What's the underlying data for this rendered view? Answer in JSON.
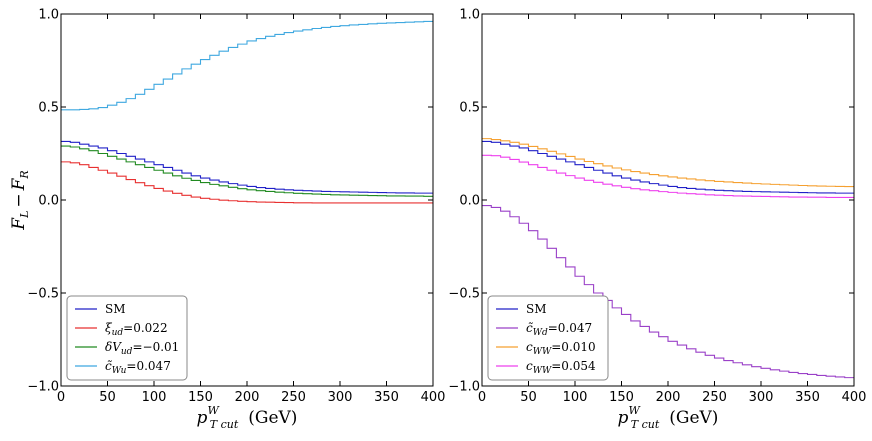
{
  "chart_data": [
    {
      "type": "line",
      "panel": "left",
      "xlabel": "p_T cut^W  (GeV)",
      "xlabel_main": "p",
      "xlabel_sub": "T cut",
      "xlabel_sup": "W",
      "xlabel_unit": "(GeV)",
      "ylabel": "F_L − F_R",
      "ylabel_a": "F",
      "ylabel_a_sub": "L",
      "ylabel_op": "−",
      "ylabel_b": "F",
      "ylabel_b_sub": "R",
      "xlim": [
        0,
        400
      ],
      "ylim": [
        -1.0,
        1.0
      ],
      "xticks": [
        0,
        50,
        100,
        150,
        200,
        250,
        300,
        350,
        400
      ],
      "xtick_labels": [
        "0",
        "50",
        "100",
        "150",
        "200",
        "250",
        "300",
        "350",
        "400"
      ],
      "yticks": [
        -1.0,
        -0.5,
        0.0,
        0.5,
        1.0
      ],
      "ytick_labels": [
        "−1.0",
        "−0.5",
        "0.0",
        "0.5",
        "1.0"
      ],
      "legend_position": "lower-left",
      "series": [
        {
          "name": "SM",
          "label_main": "SM",
          "label_sub": "",
          "label_value": "",
          "color": "#2020c8",
          "x": [
            0,
            10,
            20,
            30,
            40,
            50,
            60,
            70,
            80,
            90,
            100,
            110,
            120,
            130,
            140,
            150,
            160,
            170,
            180,
            190,
            200,
            210,
            220,
            230,
            240,
            250,
            260,
            270,
            280,
            290,
            300,
            310,
            320,
            330,
            340,
            350,
            360,
            370,
            380,
            390
          ],
          "y": [
            0.315,
            0.31,
            0.3,
            0.29,
            0.28,
            0.265,
            0.25,
            0.235,
            0.22,
            0.205,
            0.19,
            0.175,
            0.16,
            0.145,
            0.13,
            0.118,
            0.107,
            0.097,
            0.088,
            0.08,
            0.073,
            0.067,
            0.062,
            0.058,
            0.055,
            0.052,
            0.05,
            0.048,
            0.046,
            0.045,
            0.044,
            0.043,
            0.042,
            0.041,
            0.04,
            0.039,
            0.038,
            0.038,
            0.037,
            0.037
          ]
        },
        {
          "name": "ξ_ud=0.022",
          "label_main": "ξ",
          "label_sub": "ud",
          "label_value": "=0.022",
          "color": "#e83030",
          "x": [
            0,
            10,
            20,
            30,
            40,
            50,
            60,
            70,
            80,
            90,
            100,
            110,
            120,
            130,
            140,
            150,
            160,
            170,
            180,
            190,
            200,
            210,
            220,
            230,
            240,
            250,
            260,
            270,
            280,
            290,
            300,
            310,
            320,
            330,
            340,
            350,
            360,
            370,
            380,
            390
          ],
          "y": [
            0.205,
            0.2,
            0.19,
            0.175,
            0.16,
            0.145,
            0.128,
            0.11,
            0.093,
            0.077,
            0.062,
            0.048,
            0.036,
            0.025,
            0.016,
            0.009,
            0.004,
            -0.001,
            -0.004,
            -0.007,
            -0.009,
            -0.011,
            -0.012,
            -0.013,
            -0.014,
            -0.015,
            -0.015,
            -0.016,
            -0.016,
            -0.016,
            -0.016,
            -0.016,
            -0.016,
            -0.016,
            -0.016,
            -0.016,
            -0.016,
            -0.016,
            -0.016,
            -0.016
          ]
        },
        {
          "name": "δV_ud=−0.01",
          "label_main": "δV",
          "label_sub": "ud",
          "label_value": "=−0.01",
          "color": "#208a20",
          "x": [
            0,
            10,
            20,
            30,
            40,
            50,
            60,
            70,
            80,
            90,
            100,
            110,
            120,
            130,
            140,
            150,
            160,
            170,
            180,
            190,
            200,
            210,
            220,
            230,
            240,
            250,
            260,
            270,
            280,
            290,
            300,
            310,
            320,
            330,
            340,
            350,
            360,
            370,
            380,
            390
          ],
          "y": [
            0.29,
            0.285,
            0.275,
            0.265,
            0.25,
            0.235,
            0.22,
            0.205,
            0.19,
            0.175,
            0.16,
            0.145,
            0.13,
            0.117,
            0.105,
            0.094,
            0.084,
            0.076,
            0.068,
            0.061,
            0.055,
            0.05,
            0.046,
            0.042,
            0.039,
            0.036,
            0.034,
            0.032,
            0.03,
            0.028,
            0.027,
            0.026,
            0.025,
            0.024,
            0.023,
            0.022,
            0.022,
            0.021,
            0.021,
            0.02
          ]
        },
        {
          "name": "c̃_Wu=0.047",
          "label_main": "c̃",
          "label_sub": "Wu",
          "label_value": "=0.047",
          "color": "#3fa8e0",
          "x": [
            0,
            10,
            20,
            30,
            40,
            50,
            60,
            70,
            80,
            90,
            100,
            110,
            120,
            130,
            140,
            150,
            160,
            170,
            180,
            190,
            200,
            210,
            220,
            230,
            240,
            250,
            260,
            270,
            280,
            290,
            300,
            310,
            320,
            330,
            340,
            350,
            360,
            370,
            380,
            390
          ],
          "y": [
            0.485,
            0.485,
            0.487,
            0.49,
            0.497,
            0.51,
            0.525,
            0.545,
            0.568,
            0.595,
            0.622,
            0.65,
            0.678,
            0.705,
            0.73,
            0.755,
            0.778,
            0.8,
            0.82,
            0.838,
            0.855,
            0.868,
            0.88,
            0.89,
            0.9,
            0.908,
            0.915,
            0.922,
            0.928,
            0.933,
            0.937,
            0.941,
            0.944,
            0.947,
            0.95,
            0.952,
            0.954,
            0.956,
            0.958,
            0.96
          ]
        }
      ]
    },
    {
      "type": "line",
      "panel": "right",
      "xlabel": "p_T cut^W  (GeV)",
      "xlabel_main": "p",
      "xlabel_sub": "T cut",
      "xlabel_sup": "W",
      "xlabel_unit": "(GeV)",
      "xlim": [
        0,
        400
      ],
      "ylim": [
        -1.0,
        1.0
      ],
      "xticks": [
        0,
        50,
        100,
        150,
        200,
        250,
        300,
        350,
        400
      ],
      "xtick_labels": [
        "0",
        "50",
        "100",
        "150",
        "200",
        "250",
        "300",
        "350",
        "400"
      ],
      "yticks": [
        -1.0,
        -0.5,
        0.0,
        0.5,
        1.0
      ],
      "ytick_labels": [
        "−1.0",
        "−0.5",
        "0.0",
        "0.5",
        "1.0"
      ],
      "legend_position": "lower-left",
      "series": [
        {
          "name": "SM",
          "label_main": "SM",
          "label_sub": "",
          "label_value": "",
          "color": "#2020c8",
          "x": [
            0,
            10,
            20,
            30,
            40,
            50,
            60,
            70,
            80,
            90,
            100,
            110,
            120,
            130,
            140,
            150,
            160,
            170,
            180,
            190,
            200,
            210,
            220,
            230,
            240,
            250,
            260,
            270,
            280,
            290,
            300,
            310,
            320,
            330,
            340,
            350,
            360,
            370,
            380,
            390
          ],
          "y": [
            0.315,
            0.31,
            0.3,
            0.29,
            0.28,
            0.265,
            0.25,
            0.235,
            0.22,
            0.205,
            0.19,
            0.175,
            0.16,
            0.145,
            0.13,
            0.118,
            0.107,
            0.097,
            0.088,
            0.08,
            0.073,
            0.067,
            0.062,
            0.058,
            0.055,
            0.052,
            0.05,
            0.048,
            0.046,
            0.045,
            0.044,
            0.043,
            0.042,
            0.041,
            0.04,
            0.039,
            0.038,
            0.038,
            0.037,
            0.037
          ]
        },
        {
          "name": "c̃_Wd=0.047",
          "label_main": "c̃",
          "label_sub": "Wd",
          "label_value": "=0.047",
          "color": "#9a40c8",
          "x": [
            0,
            10,
            20,
            30,
            40,
            50,
            60,
            70,
            80,
            90,
            100,
            110,
            120,
            130,
            140,
            150,
            160,
            170,
            180,
            190,
            200,
            210,
            220,
            230,
            240,
            250,
            260,
            270,
            280,
            290,
            300,
            310,
            320,
            330,
            340,
            350,
            360,
            370,
            380,
            390
          ],
          "y": [
            -0.03,
            -0.04,
            -0.06,
            -0.09,
            -0.125,
            -0.165,
            -0.21,
            -0.26,
            -0.31,
            -0.36,
            -0.41,
            -0.455,
            -0.5,
            -0.54,
            -0.58,
            -0.615,
            -0.65,
            -0.68,
            -0.71,
            -0.735,
            -0.76,
            -0.78,
            -0.8,
            -0.818,
            -0.835,
            -0.85,
            -0.863,
            -0.875,
            -0.886,
            -0.896,
            -0.905,
            -0.913,
            -0.92,
            -0.927,
            -0.933,
            -0.938,
            -0.943,
            -0.947,
            -0.951,
            -0.955
          ]
        },
        {
          "name": "c_WW=0.010",
          "label_main": "c",
          "label_sub": "WW",
          "label_value": "=0.010",
          "color": "#f5a030",
          "x": [
            0,
            10,
            20,
            30,
            40,
            50,
            60,
            70,
            80,
            90,
            100,
            110,
            120,
            130,
            140,
            150,
            160,
            170,
            180,
            190,
            200,
            210,
            220,
            230,
            240,
            250,
            260,
            270,
            280,
            290,
            300,
            310,
            320,
            330,
            340,
            350,
            360,
            370,
            380,
            390
          ],
          "y": [
            0.33,
            0.325,
            0.318,
            0.31,
            0.3,
            0.288,
            0.275,
            0.262,
            0.248,
            0.234,
            0.22,
            0.207,
            0.195,
            0.183,
            0.172,
            0.162,
            0.153,
            0.145,
            0.137,
            0.13,
            0.124,
            0.118,
            0.113,
            0.108,
            0.104,
            0.1,
            0.097,
            0.094,
            0.091,
            0.088,
            0.086,
            0.084,
            0.082,
            0.08,
            0.078,
            0.076,
            0.075,
            0.074,
            0.073,
            0.072
          ]
        },
        {
          "name": "c_WW=0.054",
          "label_main": "c",
          "label_sub": "WW",
          "label_value": "=0.054",
          "color": "#ee40ee",
          "x": [
            0,
            10,
            20,
            30,
            40,
            50,
            60,
            70,
            80,
            90,
            100,
            110,
            120,
            130,
            140,
            150,
            160,
            170,
            180,
            190,
            200,
            210,
            220,
            230,
            240,
            250,
            260,
            270,
            280,
            290,
            300,
            310,
            320,
            330,
            340,
            350,
            360,
            370,
            380,
            390
          ],
          "y": [
            0.24,
            0.238,
            0.23,
            0.218,
            0.204,
            0.19,
            0.175,
            0.16,
            0.145,
            0.131,
            0.118,
            0.106,
            0.095,
            0.085,
            0.076,
            0.068,
            0.061,
            0.055,
            0.05,
            0.045,
            0.041,
            0.037,
            0.034,
            0.031,
            0.028,
            0.026,
            0.024,
            0.022,
            0.021,
            0.02,
            0.019,
            0.018,
            0.017,
            0.016,
            0.016,
            0.015,
            0.015,
            0.014,
            0.014,
            0.014
          ]
        }
      ]
    }
  ]
}
